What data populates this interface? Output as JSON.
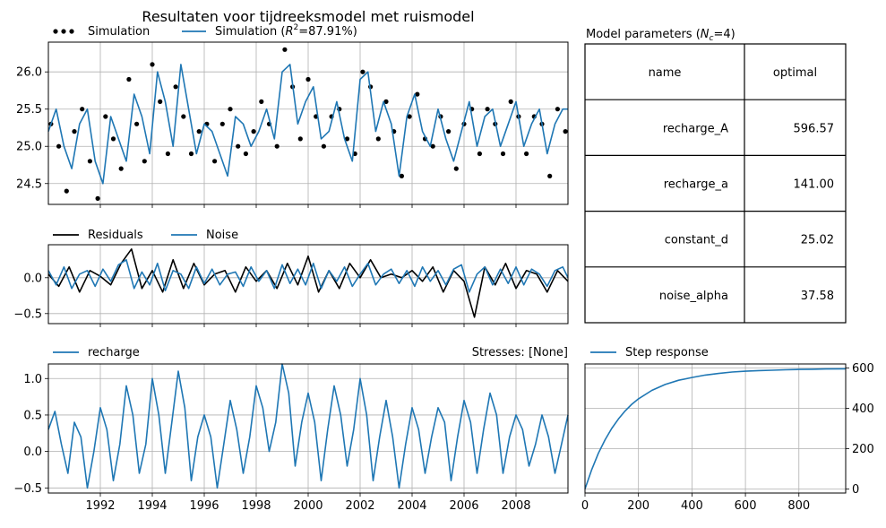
{
  "title": "Resultaten voor tijdreeksmodel met ruismodel",
  "colors": {
    "observed": "#000000",
    "simulation": "#1f77b4",
    "grid": "#b0b0b0"
  },
  "chart_data": [
    {
      "id": "simulation",
      "type": "line",
      "legend": [
        {
          "label": "Simulation",
          "style": "dots",
          "color": "#000000"
        },
        {
          "label_prefix": "Simulation (",
          "label_math": "R",
          "label_sup": "2",
          "label_suffix": "=87.91%)",
          "style": "line",
          "color": "#1f77b4"
        }
      ],
      "xlim": [
        1990.0,
        2010.0
      ],
      "ylim": [
        24.22,
        26.4
      ],
      "yticks": [
        24.5,
        25.0,
        25.5,
        26.0
      ],
      "ytick_labels": [
        "24.5",
        "25.0",
        "25.5",
        "26.0"
      ],
      "grid": true,
      "series": [
        {
          "name": "Simulation",
          "kind": "observed-dots",
          "x": [
            1990.1,
            1990.4,
            1990.7,
            1991.0,
            1991.3,
            1991.6,
            1991.9,
            1992.2,
            1992.5,
            1992.8,
            1993.1,
            1993.4,
            1993.7,
            1994.0,
            1994.3,
            1994.6,
            1994.9,
            1995.2,
            1995.5,
            1995.8,
            1996.1,
            1996.4,
            1996.7,
            1997.0,
            1997.3,
            1997.6,
            1997.9,
            1998.2,
            1998.5,
            1998.8,
            1999.1,
            1999.4,
            1999.7,
            2000.0,
            2000.3,
            2000.6,
            2000.9,
            2001.2,
            2001.5,
            2001.8,
            2002.1,
            2002.4,
            2002.7,
            2003.0,
            2003.3,
            2003.6,
            2003.9,
            2004.2,
            2004.5,
            2004.8,
            2005.1,
            2005.4,
            2005.7,
            2006.0,
            2006.3,
            2006.6,
            2006.9,
            2007.2,
            2007.5,
            2007.8,
            2008.1,
            2008.4,
            2008.7,
            2009.0,
            2009.3,
            2009.6,
            2009.9
          ],
          "y": [
            25.3,
            25.0,
            24.4,
            25.2,
            25.5,
            24.8,
            24.3,
            25.4,
            25.1,
            24.7,
            25.9,
            25.3,
            24.8,
            26.1,
            25.6,
            24.9,
            25.8,
            25.4,
            24.9,
            25.2,
            25.3,
            24.8,
            25.3,
            25.5,
            25.0,
            24.9,
            25.2,
            25.6,
            25.3,
            25.0,
            26.3,
            25.8,
            25.1,
            25.9,
            25.4,
            25.0,
            25.4,
            25.5,
            25.1,
            24.9,
            26.0,
            25.8,
            25.1,
            25.6,
            25.2,
            24.6,
            25.4,
            25.7,
            25.1,
            25.0,
            25.4,
            25.2,
            24.7,
            25.3,
            25.5,
            24.9,
            25.5,
            25.3,
            24.9,
            25.6,
            25.4,
            24.9,
            25.4,
            25.3,
            24.6,
            25.5,
            25.2
          ]
        },
        {
          "name": "Simulation (R2=87.91%)",
          "kind": "model-line",
          "x": [
            1990.0,
            1990.3,
            1990.6,
            1990.9,
            1991.2,
            1991.5,
            1991.8,
            1992.1,
            1992.4,
            1992.7,
            1993.0,
            1993.3,
            1993.6,
            1993.9,
            1994.2,
            1994.5,
            1994.8,
            1995.1,
            1995.4,
            1995.7,
            1996.0,
            1996.3,
            1996.6,
            1996.9,
            1997.2,
            1997.5,
            1997.8,
            1998.1,
            1998.4,
            1998.7,
            1999.0,
            1999.3,
            1999.6,
            1999.9,
            2000.2,
            2000.5,
            2000.8,
            2001.1,
            2001.4,
            2001.7,
            2002.0,
            2002.3,
            2002.6,
            2002.9,
            2003.2,
            2003.5,
            2003.8,
            2004.1,
            2004.4,
            2004.7,
            2005.0,
            2005.3,
            2005.6,
            2005.9,
            2006.2,
            2006.5,
            2006.8,
            2007.1,
            2007.4,
            2007.7,
            2008.0,
            2008.3,
            2008.6,
            2008.9,
            2009.2,
            2009.5,
            2009.8,
            2010.0
          ],
          "y": [
            25.2,
            25.5,
            25.0,
            24.7,
            25.3,
            25.5,
            24.8,
            24.5,
            25.4,
            25.1,
            24.8,
            25.7,
            25.4,
            24.9,
            26.0,
            25.6,
            25.0,
            26.1,
            25.5,
            24.9,
            25.3,
            25.2,
            24.9,
            24.6,
            25.4,
            25.3,
            25.0,
            25.2,
            25.5,
            25.1,
            26.0,
            26.1,
            25.3,
            25.6,
            25.8,
            25.1,
            25.2,
            25.6,
            25.1,
            24.8,
            25.9,
            26.0,
            25.2,
            25.6,
            25.3,
            24.6,
            25.4,
            25.7,
            25.2,
            25.0,
            25.5,
            25.1,
            24.8,
            25.2,
            25.6,
            25.0,
            25.4,
            25.5,
            25.0,
            25.3,
            25.6,
            25.0,
            25.3,
            25.5,
            24.9,
            25.3,
            25.5,
            25.5
          ]
        }
      ]
    },
    {
      "id": "residuals",
      "type": "line",
      "legend": [
        {
          "label": "Residuals",
          "style": "line",
          "color": "#000000"
        },
        {
          "label": "Noise",
          "style": "line",
          "color": "#1f77b4"
        }
      ],
      "xlim": [
        1990.0,
        2010.0
      ],
      "ylim": [
        -0.64,
        0.46
      ],
      "yticks": [
        -0.5,
        0.0
      ],
      "ytick_labels": [
        "−0.5",
        "0.0"
      ],
      "grid": true,
      "series": [
        {
          "name": "Residuals",
          "x": [
            1990.0,
            1990.4,
            1990.8,
            1991.2,
            1991.6,
            1992.0,
            1992.4,
            1992.8,
            1993.2,
            1993.6,
            1994.0,
            1994.4,
            1994.8,
            1995.2,
            1995.6,
            1996.0,
            1996.4,
            1996.8,
            1997.2,
            1997.6,
            1998.0,
            1998.4,
            1998.8,
            1999.2,
            1999.6,
            2000.0,
            2000.4,
            2000.8,
            2001.2,
            2001.6,
            2002.0,
            2002.4,
            2002.8,
            2003.2,
            2003.6,
            2004.0,
            2004.4,
            2004.8,
            2005.2,
            2005.6,
            2006.0,
            2006.4,
            2006.8,
            2007.2,
            2007.6,
            2008.0,
            2008.4,
            2008.8,
            2009.2,
            2009.6,
            2010.0
          ],
          "y": [
            0.05,
            -0.12,
            0.15,
            -0.2,
            0.1,
            0.02,
            -0.1,
            0.2,
            0.4,
            -0.15,
            0.1,
            -0.2,
            0.25,
            -0.15,
            0.2,
            -0.1,
            0.05,
            0.1,
            -0.2,
            0.15,
            -0.05,
            0.1,
            -0.15,
            0.2,
            -0.1,
            0.3,
            -0.2,
            0.1,
            -0.15,
            0.2,
            0.0,
            0.25,
            0.0,
            0.05,
            0.0,
            0.1,
            -0.05,
            0.15,
            -0.2,
            0.1,
            -0.05,
            -0.55,
            0.15,
            -0.1,
            0.2,
            -0.15,
            0.1,
            0.05,
            -0.2,
            0.1,
            -0.05
          ]
        },
        {
          "name": "Noise",
          "x": [
            1990.0,
            1990.3,
            1990.6,
            1990.9,
            1991.2,
            1991.5,
            1991.8,
            1992.1,
            1992.4,
            1992.7,
            1993.0,
            1993.3,
            1993.6,
            1993.9,
            1994.2,
            1994.5,
            1994.8,
            1995.1,
            1995.4,
            1995.7,
            1996.0,
            1996.3,
            1996.6,
            1996.9,
            1997.2,
            1997.5,
            1997.8,
            1998.1,
            1998.4,
            1998.7,
            1999.0,
            1999.3,
            1999.6,
            1999.9,
            2000.2,
            2000.5,
            2000.8,
            2001.1,
            2001.4,
            2001.7,
            2002.0,
            2002.3,
            2002.6,
            2002.9,
            2003.2,
            2003.5,
            2003.8,
            2004.1,
            2004.4,
            2004.7,
            2005.0,
            2005.3,
            2005.6,
            2005.9,
            2006.2,
            2006.5,
            2006.8,
            2007.1,
            2007.4,
            2007.7,
            2008.0,
            2008.3,
            2008.6,
            2008.9,
            2009.2,
            2009.5,
            2009.8,
            2010.0
          ],
          "y": [
            0.1,
            -0.1,
            0.15,
            -0.15,
            0.05,
            0.1,
            -0.12,
            0.12,
            -0.05,
            0.18,
            0.25,
            -0.15,
            0.08,
            -0.1,
            0.2,
            -0.18,
            0.1,
            0.05,
            -0.15,
            0.15,
            -0.08,
            0.12,
            -0.1,
            0.05,
            0.08,
            -0.12,
            0.15,
            -0.05,
            0.1,
            -0.15,
            0.18,
            -0.08,
            0.12,
            -0.1,
            0.2,
            -0.15,
            0.1,
            -0.05,
            0.15,
            -0.12,
            0.05,
            0.2,
            -0.1,
            0.05,
            0.12,
            -0.08,
            0.1,
            -0.12,
            0.15,
            -0.05,
            0.1,
            -0.1,
            0.12,
            0.18,
            -0.2,
            0.05,
            0.15,
            -0.1,
            0.12,
            -0.08,
            0.15,
            -0.1,
            0.12,
            0.05,
            -0.12,
            0.1,
            0.15,
            0.0
          ]
        }
      ]
    },
    {
      "id": "stresses",
      "type": "line",
      "legend": [
        {
          "label": "recharge",
          "style": "line",
          "color": "#1f77b4"
        }
      ],
      "right_label": "Stresses: [None]",
      "xlim": [
        1990.0,
        2010.0
      ],
      "ylim": [
        -0.57,
        1.2
      ],
      "yticks": [
        -0.5,
        0.0,
        0.5,
        1.0
      ],
      "ytick_labels": [
        "−0.5",
        "0.0",
        "0.5",
        "1.0"
      ],
      "xticks": [
        1992,
        1994,
        1996,
        1998,
        2000,
        2002,
        2004,
        2006,
        2008
      ],
      "xtick_labels": [
        "1992",
        "1994",
        "1996",
        "1998",
        "2000",
        "2002",
        "2004",
        "2006",
        "2008"
      ],
      "grid": true,
      "series": [
        {
          "name": "recharge",
          "x": [
            1990.0,
            1990.25,
            1990.5,
            1990.75,
            1991.0,
            1991.25,
            1991.5,
            1991.75,
            1992.0,
            1992.25,
            1992.5,
            1992.75,
            1993.0,
            1993.25,
            1993.5,
            1993.75,
            1994.0,
            1994.25,
            1994.5,
            1994.75,
            1995.0,
            1995.25,
            1995.5,
            1995.75,
            1996.0,
            1996.25,
            1996.5,
            1996.75,
            1997.0,
            1997.25,
            1997.5,
            1997.75,
            1998.0,
            1998.25,
            1998.5,
            1998.75,
            1999.0,
            1999.25,
            1999.5,
            1999.75,
            2000.0,
            2000.25,
            2000.5,
            2000.75,
            2001.0,
            2001.25,
            2001.5,
            2001.75,
            2002.0,
            2002.25,
            2002.5,
            2002.75,
            2003.0,
            2003.25,
            2003.5,
            2003.75,
            2004.0,
            2004.25,
            2004.5,
            2004.75,
            2005.0,
            2005.25,
            2005.5,
            2005.75,
            2006.0,
            2006.25,
            2006.5,
            2006.75,
            2007.0,
            2007.25,
            2007.5,
            2007.75,
            2008.0,
            2008.25,
            2008.5,
            2008.75,
            2009.0,
            2009.25,
            2009.5,
            2009.75,
            2010.0
          ],
          "y": [
            0.3,
            0.55,
            0.1,
            -0.3,
            0.4,
            0.2,
            -0.5,
            0.0,
            0.6,
            0.3,
            -0.4,
            0.1,
            0.9,
            0.5,
            -0.3,
            0.1,
            1.0,
            0.5,
            -0.3,
            0.4,
            1.1,
            0.6,
            -0.4,
            0.2,
            0.5,
            0.2,
            -0.5,
            0.1,
            0.7,
            0.3,
            -0.3,
            0.2,
            0.9,
            0.6,
            0.0,
            0.4,
            1.2,
            0.8,
            -0.2,
            0.4,
            0.8,
            0.4,
            -0.4,
            0.3,
            0.9,
            0.5,
            -0.2,
            0.3,
            1.0,
            0.5,
            -0.4,
            0.2,
            0.7,
            0.2,
            -0.5,
            0.1,
            0.6,
            0.3,
            -0.3,
            0.2,
            0.6,
            0.4,
            -0.4,
            0.2,
            0.7,
            0.4,
            -0.3,
            0.3,
            0.8,
            0.5,
            -0.3,
            0.2,
            0.5,
            0.3,
            -0.2,
            0.1,
            0.5,
            0.2,
            -0.3,
            0.1,
            0.5
          ]
        }
      ]
    },
    {
      "id": "step-response",
      "type": "line",
      "legend": [
        {
          "label": "Step response",
          "style": "line",
          "color": "#1f77b4"
        }
      ],
      "xlim": [
        0,
        975
      ],
      "ylim": [
        -20,
        620
      ],
      "xticks": [
        0,
        200,
        400,
        600,
        800
      ],
      "xtick_labels": [
        "0",
        "200",
        "400",
        "600",
        "800"
      ],
      "yticks": [
        0,
        200,
        400,
        600
      ],
      "ytick_labels": [
        "0",
        "200",
        "400",
        "600"
      ],
      "grid": true,
      "series": [
        {
          "name": "Step response",
          "x": [
            0,
            25,
            50,
            75,
            100,
            125,
            150,
            175,
            200,
            250,
            300,
            350,
            400,
            450,
            500,
            550,
            600,
            650,
            700,
            750,
            800,
            850,
            900,
            975
          ],
          "y": [
            0,
            96,
            177,
            244,
            300,
            347,
            387,
            420,
            447,
            489,
            518,
            539,
            553,
            565,
            573,
            580,
            584,
            587,
            589,
            591,
            593,
            594,
            595,
            596
          ]
        }
      ]
    },
    {
      "id": "parameters",
      "type": "table",
      "title_prefix": "Model parameters (",
      "title_math": "N",
      "title_sub": "c",
      "title_suffix": "=4)",
      "columns": [
        "name",
        "optimal"
      ],
      "rows": [
        [
          "recharge_A",
          "596.57"
        ],
        [
          "recharge_a",
          "141.00"
        ],
        [
          "constant_d",
          "25.02"
        ],
        [
          "noise_alpha",
          "37.58"
        ]
      ]
    }
  ]
}
